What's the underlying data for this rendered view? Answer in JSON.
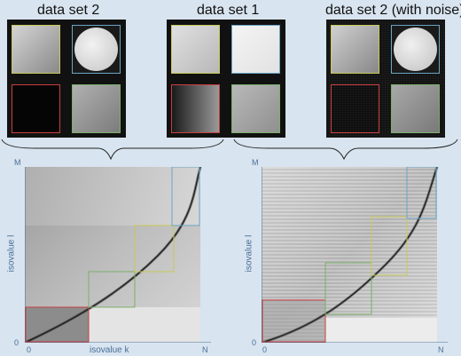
{
  "panels": {
    "left_title": "data set 2",
    "middle_title": "data set 1",
    "right_title": "data set 2 (with noise)"
  },
  "maps": {
    "left": {
      "y_label": "isovalue l",
      "x_label": "isovalue k",
      "origin": "0",
      "x_end": "N",
      "y_end": "M"
    },
    "right": {
      "y_label": "isovalue l",
      "x_label": "isovalue k",
      "origin": "0",
      "x_end": "N",
      "y_end": "M"
    }
  },
  "colors": {
    "yellow": "#c8c85a",
    "cyan": "#6aa6c4",
    "red": "#c84040",
    "green": "#7ab068",
    "axis": "#4a6f98",
    "background": "#d8e4ef"
  }
}
